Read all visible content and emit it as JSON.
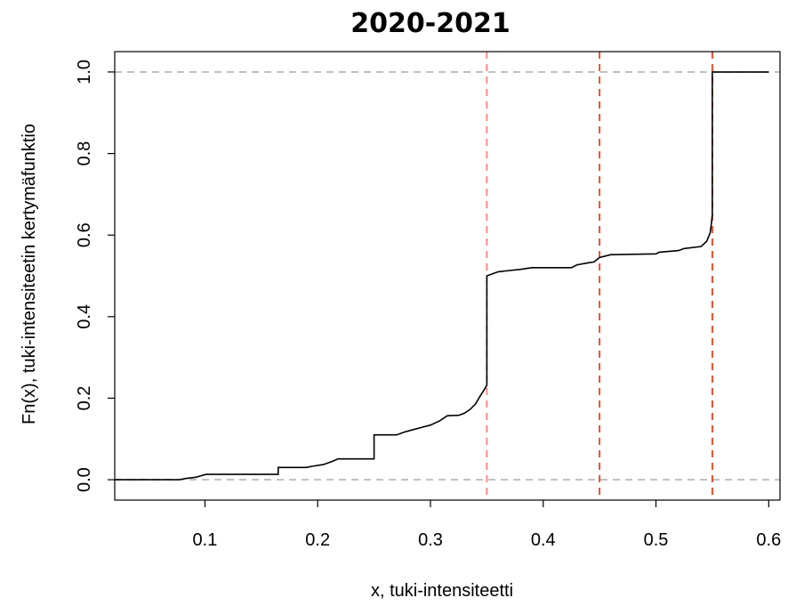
{
  "chart_data": {
    "type": "line",
    "step": true,
    "title": "2020-2021",
    "xlabel": "x, tuki-intensiteetti",
    "ylabel": "Fn(x), tuki-intensiteetin kertymäfunktio",
    "xlim": [
      0.02,
      0.61
    ],
    "ylim": [
      -0.05,
      1.05
    ],
    "x_ticks": [
      0.1,
      0.2,
      0.3,
      0.4,
      0.5,
      0.6
    ],
    "x_tick_labels": [
      "0.1",
      "0.2",
      "0.3",
      "0.4",
      "0.5",
      "0.6"
    ],
    "y_ticks": [
      0.0,
      0.2,
      0.4,
      0.6,
      0.8,
      1.0
    ],
    "y_tick_labels": [
      "0.0",
      "0.2",
      "0.4",
      "0.6",
      "0.8",
      "1.0"
    ],
    "grid": false,
    "reference_lines": {
      "horizontal": [
        {
          "y": 0.0,
          "style": "dashed",
          "color": "#b3b3b3"
        },
        {
          "y": 1.0,
          "style": "dashed",
          "color": "#b3b3b3"
        }
      ],
      "vertical": [
        {
          "x": 0.35,
          "style": "dashed",
          "color": "#ff8080"
        },
        {
          "x": 0.45,
          "style": "dashed",
          "color": "#e8401c"
        },
        {
          "x": 0.55,
          "style": "dashed",
          "color": "#e8401c"
        }
      ]
    },
    "series": [
      {
        "color": "#000000",
        "points": [
          [
            0.02,
            0.0
          ],
          [
            0.077,
            0.0
          ],
          [
            0.083,
            0.003
          ],
          [
            0.092,
            0.006
          ],
          [
            0.097,
            0.01
          ],
          [
            0.101,
            0.013
          ],
          [
            0.165,
            0.013
          ],
          [
            0.165,
            0.03
          ],
          [
            0.19,
            0.03
          ],
          [
            0.195,
            0.033
          ],
          [
            0.205,
            0.037
          ],
          [
            0.213,
            0.045
          ],
          [
            0.218,
            0.051
          ],
          [
            0.25,
            0.051
          ],
          [
            0.25,
            0.11
          ],
          [
            0.27,
            0.11
          ],
          [
            0.277,
            0.117
          ],
          [
            0.285,
            0.123
          ],
          [
            0.292,
            0.128
          ],
          [
            0.3,
            0.134
          ],
          [
            0.308,
            0.144
          ],
          [
            0.315,
            0.157
          ],
          [
            0.325,
            0.158
          ],
          [
            0.33,
            0.163
          ],
          [
            0.335,
            0.172
          ],
          [
            0.34,
            0.186
          ],
          [
            0.344,
            0.205
          ],
          [
            0.348,
            0.222
          ],
          [
            0.35,
            0.232
          ],
          [
            0.35,
            0.5
          ],
          [
            0.355,
            0.505
          ],
          [
            0.36,
            0.51
          ],
          [
            0.37,
            0.513
          ],
          [
            0.38,
            0.516
          ],
          [
            0.39,
            0.52
          ],
          [
            0.4,
            0.52
          ],
          [
            0.425,
            0.52
          ],
          [
            0.43,
            0.527
          ],
          [
            0.44,
            0.532
          ],
          [
            0.445,
            0.534
          ],
          [
            0.45,
            0.545
          ],
          [
            0.46,
            0.552
          ],
          [
            0.5,
            0.554
          ],
          [
            0.503,
            0.558
          ],
          [
            0.52,
            0.562
          ],
          [
            0.525,
            0.567
          ],
          [
            0.54,
            0.572
          ],
          [
            0.545,
            0.585
          ],
          [
            0.548,
            0.605
          ],
          [
            0.549,
            0.625
          ],
          [
            0.55,
            0.65
          ],
          [
            0.55,
            1.0
          ],
          [
            0.6,
            1.0
          ]
        ]
      }
    ]
  }
}
